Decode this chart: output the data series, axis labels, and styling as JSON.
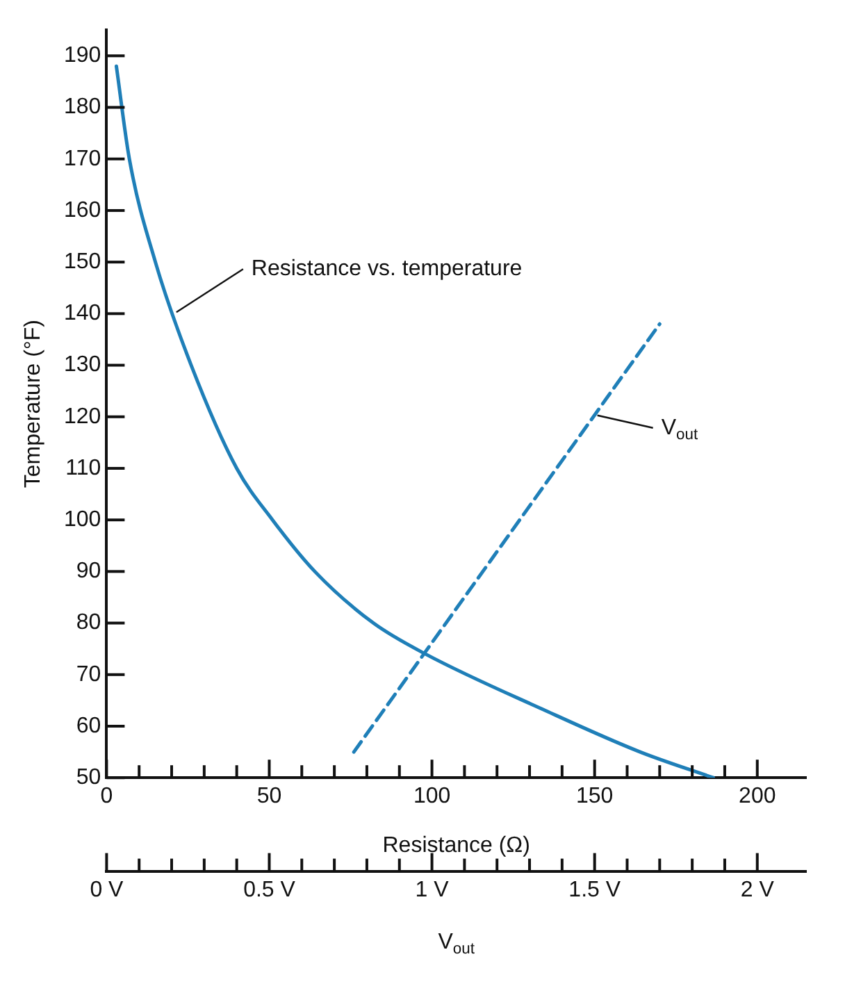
{
  "chart_data": {
    "type": "line",
    "xlabel": "Resistance (Ω)",
    "ylabel": "Temperature (°F)",
    "x2label": "V$_{out}$",
    "xlim": [
      0,
      215
    ],
    "ylim": [
      50,
      195
    ],
    "x2lim": [
      0,
      2.15
    ],
    "xticks": [
      0,
      {
        "value": 10,
        "label": null
      },
      {
        "value": 20,
        "label": null
      },
      {
        "value": 30,
        "label": null
      },
      {
        "value": 40,
        "label": null
      },
      50,
      {
        "value": 60,
        "label": null
      },
      {
        "value": 70,
        "label": null
      },
      {
        "value": 80,
        "label": null
      },
      {
        "value": 90,
        "label": null
      },
      100,
      {
        "value": 110,
        "label": null
      },
      {
        "value": 120,
        "label": null
      },
      {
        "value": 130,
        "label": null
      },
      {
        "value": 140,
        "label": null
      },
      150,
      {
        "value": 160,
        "label": null
      },
      {
        "value": 170,
        "label": null
      },
      {
        "value": 180,
        "label": null
      },
      {
        "value": 190,
        "label": null
      },
      200
    ],
    "x2ticks": [
      {
        "value": 0,
        "label": "0 V"
      },
      {
        "value": 0.1,
        "label": null
      },
      {
        "value": 0.2,
        "label": null
      },
      {
        "value": 0.3,
        "label": null
      },
      {
        "value": 0.4,
        "label": null
      },
      {
        "value": 0.5,
        "label": "0.5 V"
      },
      {
        "value": 0.6,
        "label": null
      },
      {
        "value": 0.7,
        "label": null
      },
      {
        "value": 0.8,
        "label": null
      },
      {
        "value": 0.9,
        "label": null
      },
      {
        "value": 1,
        "label": "1 V"
      },
      {
        "value": 1.1,
        "label": null
      },
      {
        "value": 1.2,
        "label": null
      },
      {
        "value": 1.3,
        "label": null
      },
      {
        "value": 1.4,
        "label": null
      },
      {
        "value": 1.5,
        "label": "1.5 V"
      },
      {
        "value": 1.6,
        "label": null
      },
      {
        "value": 1.7,
        "label": null
      },
      {
        "value": 1.8,
        "label": null
      },
      {
        "value": 1.9,
        "label": null
      },
      {
        "value": 2,
        "label": "2 V"
      }
    ],
    "yticks": [
      50,
      60,
      70,
      80,
      90,
      100,
      110,
      120,
      130,
      140,
      150,
      160,
      170,
      180,
      190
    ],
    "series": [
      {
        "color": "#1f7fb8",
        "line_style": "solid",
        "x": [
          3,
          7,
          15,
          26,
          40,
          51,
          64,
          82,
          98,
          135,
          164,
          186.5
        ],
        "values": [
          188,
          170,
          150,
          130,
          110,
          100,
          90,
          80,
          74,
          63,
          55,
          50
        ]
      },
      {
        "color": "#1f7fb8",
        "line_style": "dashed",
        "axis": "x2",
        "x": [
          0.76,
          1.7
        ],
        "values": [
          55,
          138
        ]
      }
    ],
    "marker": "none",
    "grid": false,
    "legend": false,
    "annotations": [
      {
        "text": "Resistance vs. temperature",
        "x": 20.6,
        "y": 140
      },
      {
        "text": "V$_{out}$",
        "x": 150,
        "y": 120
      }
    ]
  }
}
